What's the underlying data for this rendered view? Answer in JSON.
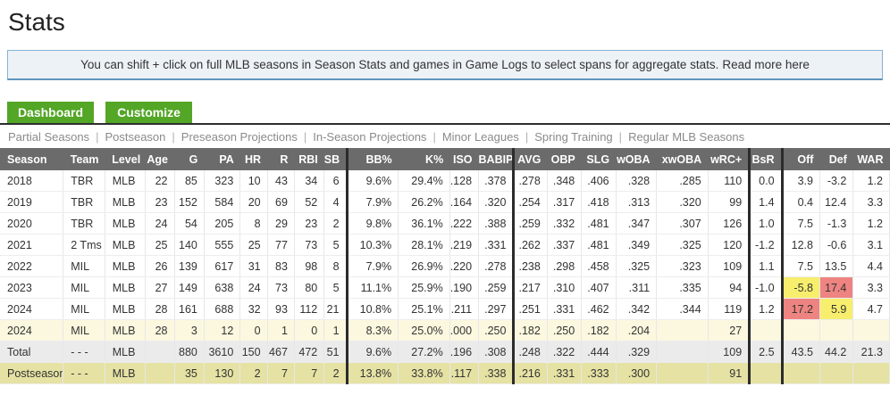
{
  "page": {
    "title": "Stats"
  },
  "banner": {
    "text": "You can shift + click on full MLB seasons in Season Stats and games in Game Logs to select spans for aggregate stats.",
    "link_text": "Read more here"
  },
  "tabs": [
    {
      "label": "Dashboard"
    },
    {
      "label": "Customize"
    }
  ],
  "nav_links": [
    "Partial Seasons",
    "Postseason",
    "Preseason Projections",
    "In-Season Projections",
    "Minor Leagues",
    "Spring Training",
    "Regular MLB Seasons"
  ],
  "table": {
    "columns": [
      "Season",
      "Team",
      "Level",
      "Age",
      "G",
      "PA",
      "HR",
      "R",
      "RBI",
      "SB",
      "BB%",
      "K%",
      "ISO",
      "BABIP",
      "AVG",
      "OBP",
      "SLG",
      "wOBA",
      "xwOBA",
      "wRC+",
      "BsR",
      "Off",
      "Def",
      "WAR"
    ],
    "rows": [
      {
        "type": "season",
        "cells": [
          "2018",
          "TBR",
          "MLB",
          "22",
          "85",
          "323",
          "10",
          "43",
          "34",
          "6",
          "9.6%",
          "29.4%",
          ".128",
          ".378",
          ".278",
          ".348",
          ".406",
          ".328",
          ".285",
          "110",
          "0.0",
          "3.9",
          "-3.2",
          "1.2"
        ]
      },
      {
        "type": "season",
        "cells": [
          "2019",
          "TBR",
          "MLB",
          "23",
          "152",
          "584",
          "20",
          "69",
          "52",
          "4",
          "7.9%",
          "26.2%",
          ".164",
          ".320",
          ".254",
          ".317",
          ".418",
          ".313",
          ".320",
          "99",
          "1.4",
          "0.4",
          "12.4",
          "3.3"
        ]
      },
      {
        "type": "season",
        "cells": [
          "2020",
          "TBR",
          "MLB",
          "24",
          "54",
          "205",
          "8",
          "29",
          "23",
          "2",
          "9.8%",
          "36.1%",
          ".222",
          ".388",
          ".259",
          ".332",
          ".481",
          ".347",
          ".307",
          "126",
          "1.0",
          "7.5",
          "-1.3",
          "1.2"
        ]
      },
      {
        "type": "season",
        "cells": [
          "2021",
          "2 Tms",
          "MLB",
          "25",
          "140",
          "555",
          "25",
          "77",
          "73",
          "5",
          "10.3%",
          "28.1%",
          ".219",
          ".331",
          ".262",
          ".337",
          ".481",
          ".349",
          ".325",
          "120",
          "-1.2",
          "12.8",
          "-0.6",
          "3.1"
        ]
      },
      {
        "type": "season",
        "cells": [
          "2022",
          "MIL",
          "MLB",
          "26",
          "139",
          "617",
          "31",
          "83",
          "98",
          "8",
          "7.9%",
          "26.9%",
          ".220",
          ".278",
          ".238",
          ".298",
          ".458",
          ".325",
          ".323",
          "109",
          "1.1",
          "7.5",
          "13.5",
          "4.4"
        ]
      },
      {
        "type": "season",
        "cells": [
          "2023",
          "MIL",
          "MLB",
          "27",
          "149",
          "638",
          "24",
          "73",
          "80",
          "5",
          "11.1%",
          "25.9%",
          ".190",
          ".259",
          ".217",
          ".310",
          ".407",
          ".311",
          ".335",
          "94",
          "-1.0",
          "-5.8",
          "17.4",
          "3.3"
        ],
        "hl": {
          "21": "yellow",
          "22": "red"
        }
      },
      {
        "type": "season",
        "cells": [
          "2024",
          "MIL",
          "MLB",
          "28",
          "161",
          "688",
          "32",
          "93",
          "112",
          "21",
          "10.8%",
          "25.1%",
          ".211",
          ".297",
          ".251",
          ".331",
          ".462",
          ".342",
          ".344",
          "119",
          "1.2",
          "17.2",
          "5.9",
          "4.7"
        ],
        "hl": {
          "21": "red",
          "22": "yellow"
        }
      },
      {
        "type": "partial",
        "cells": [
          "2024",
          "MIL",
          "MLB",
          "28",
          "3",
          "12",
          "0",
          "1",
          "0",
          "1",
          "8.3%",
          "25.0%",
          ".000",
          ".250",
          ".182",
          ".250",
          ".182",
          ".204",
          "",
          "27",
          "",
          "",
          "",
          ""
        ]
      },
      {
        "type": "total",
        "cells": [
          "Total",
          "- - -",
          "MLB",
          "",
          "880",
          "3610",
          "150",
          "467",
          "472",
          "51",
          "9.6%",
          "27.2%",
          ".196",
          ".308",
          ".248",
          ".322",
          ".444",
          ".329",
          "",
          "109",
          "2.5",
          "43.5",
          "44.2",
          "21.3"
        ]
      },
      {
        "type": "postseason",
        "cells": [
          "Postseason",
          "- - -",
          "MLB",
          "",
          "35",
          "130",
          "2",
          "7",
          "7",
          "2",
          "13.8%",
          "33.8%",
          ".117",
          ".338",
          ".216",
          ".331",
          ".333",
          ".300",
          "",
          "91",
          "",
          "",
          "",
          ""
        ]
      }
    ]
  },
  "colors": {
    "accent_green": "#53a626",
    "header_bg": "#6b6b6b",
    "group_divider": "#2b2b2b",
    "banner_bg": "#edf2f7",
    "banner_border": "#86b2d2",
    "highlight_yellow": "#f7ee6d",
    "highlight_red": "#ee8481",
    "row_partial_bg": "#fbf8df",
    "row_total_bg": "#ebebeb",
    "row_postseason_bg": "#e5e2a4"
  }
}
